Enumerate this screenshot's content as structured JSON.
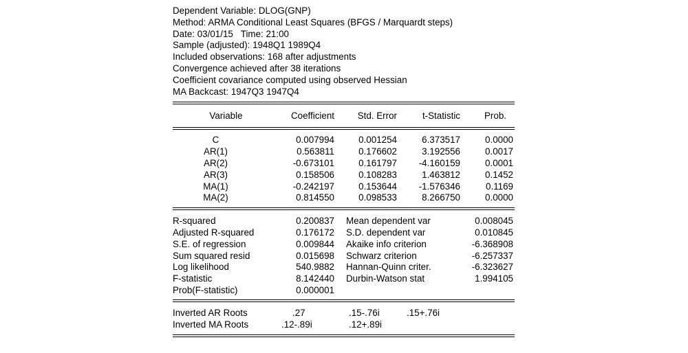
{
  "header": {
    "dependent_variable": "Dependent Variable: DLOG(GNP)",
    "method": "Method: ARMA Conditional Least Squares (BFGS / Marquardt steps)",
    "date": "Date: 03/01/15   Time: 21:00",
    "sample": "Sample (adjusted): 1948Q1 1989Q4",
    "observations": "Included observations: 168 after adjustments",
    "convergence": "Convergence achieved after 38 iterations",
    "covariance": "Coefficient covariance computed using observed Hessian",
    "backcast": "MA Backcast: 1947Q3 1947Q4"
  },
  "columns": {
    "variable": "Variable",
    "coefficient": "Coefficient",
    "std_error": "Std. Error",
    "t_statistic": "t-Statistic",
    "prob": "Prob."
  },
  "coefficients": [
    {
      "variable": "C",
      "coefficient": "0.007994",
      "std_error": "0.001254",
      "t_statistic": "6.373517",
      "prob": "0.0000"
    },
    {
      "variable": "AR(1)",
      "coefficient": "0.563811",
      "std_error": "0.176602",
      "t_statistic": "3.192556",
      "prob": "0.0017"
    },
    {
      "variable": "AR(2)",
      "coefficient": "-0.673101",
      "std_error": "0.161797",
      "t_statistic": "-4.160159",
      "prob": "0.0001"
    },
    {
      "variable": "AR(3)",
      "coefficient": "0.158506",
      "std_error": "0.108283",
      "t_statistic": "1.463812",
      "prob": "0.1452"
    },
    {
      "variable": "MA(1)",
      "coefficient": "-0.242197",
      "std_error": "0.153644",
      "t_statistic": "-1.576346",
      "prob": "0.1169"
    },
    {
      "variable": "MA(2)",
      "coefficient": "0.814550",
      "std_error": "0.098533",
      "t_statistic": "8.266750",
      "prob": "0.0000"
    }
  ],
  "stats": [
    {
      "label1": "R-squared",
      "value1": "0.200837",
      "label2": "Mean dependent var",
      "value2": "0.008045"
    },
    {
      "label1": "Adjusted R-squared",
      "value1": "0.176172",
      "label2": "S.D. dependent var",
      "value2": "0.010845"
    },
    {
      "label1": "S.E. of regression",
      "value1": "0.009844",
      "label2": "Akaike info criterion",
      "value2": "-6.368908"
    },
    {
      "label1": "Sum squared resid",
      "value1": "0.015698",
      "label2": "Schwarz criterion",
      "value2": "-6.257337"
    },
    {
      "label1": "Log likelihood",
      "value1": "540.9882",
      "label2": "Hannan-Quinn criter.",
      "value2": "-6.323627"
    },
    {
      "label1": "F-statistic",
      "value1": "8.142440",
      "label2": "Durbin-Watson stat",
      "value2": "1.994105"
    },
    {
      "label1": "Prob(F-statistic)",
      "value1": "0.000001",
      "label2": "",
      "value2": ""
    }
  ],
  "roots": {
    "ar": {
      "label": "Inverted AR Roots",
      "values": [
        ".27",
        ".15-.76i",
        ".15+.76i"
      ]
    },
    "ma": {
      "label": "Inverted MA Roots",
      "values": [
        ".12-.89i",
        ".12+.89i"
      ]
    }
  }
}
